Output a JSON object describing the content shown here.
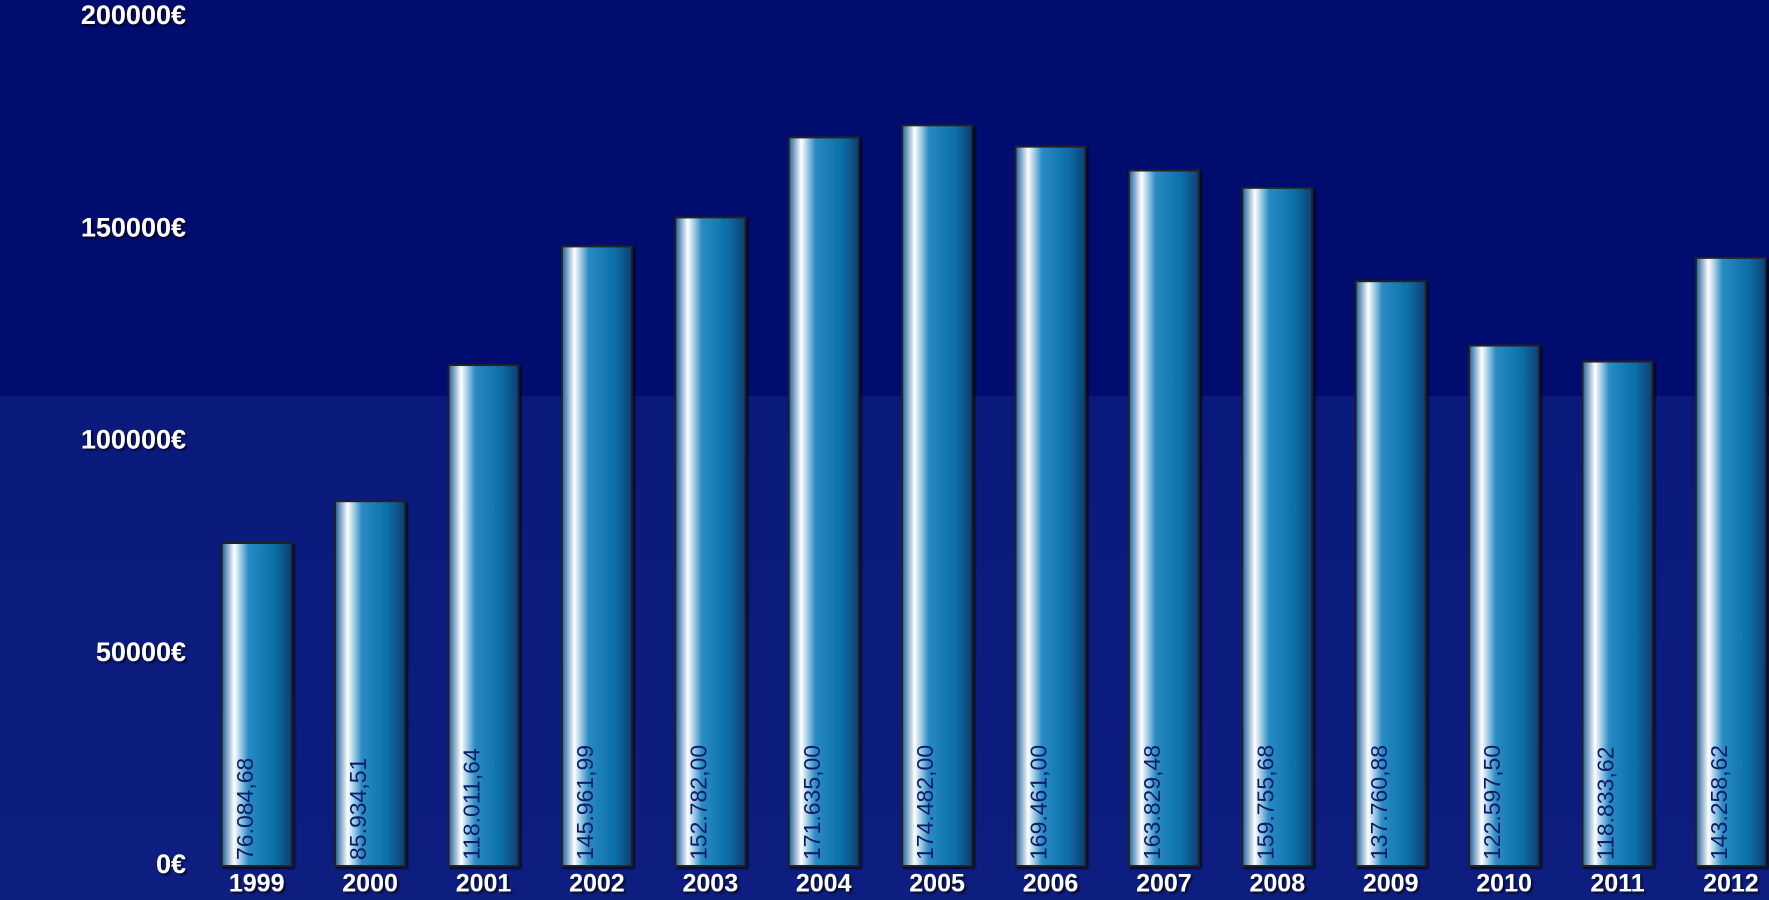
{
  "chart_data": {
    "type": "bar",
    "categories": [
      "1999",
      "2000",
      "2001",
      "2002",
      "2003",
      "2004",
      "2005",
      "2006",
      "2007",
      "2008",
      "2009",
      "2010",
      "2011",
      "2012"
    ],
    "values": [
      76084.68,
      85934.51,
      118011.64,
      145961.99,
      152782.0,
      171635.0,
      174482.0,
      169461.0,
      163829.48,
      159755.68,
      137760.88,
      122597.5,
      118833.62,
      143258.62
    ],
    "value_labels": [
      "76.084,68",
      "85.934,51",
      "118.011,64",
      "145.961,99",
      "152.782,00",
      "171.635,00",
      "174.482,00",
      "169.461,00",
      "163.829,48",
      "159.755,68",
      "137.760,88",
      "122.597,50",
      "118.833,62",
      "143.258,62"
    ],
    "color": "#0a6fa8",
    "ylim": [
      0,
      200000
    ],
    "yticks": [
      {
        "value": 0,
        "label": "0€"
      },
      {
        "value": 50000,
        "label": "50000€"
      },
      {
        "value": 100000,
        "label": "100000€"
      },
      {
        "value": 150000,
        "label": "150000€"
      },
      {
        "value": 200000,
        "label": "200000€"
      }
    ],
    "minor_yticks": [
      10000,
      20000,
      30000,
      40000,
      60000,
      70000,
      80000,
      90000,
      110000,
      120000,
      130000,
      140000,
      160000,
      170000,
      180000,
      190000
    ],
    "grid": true
  }
}
